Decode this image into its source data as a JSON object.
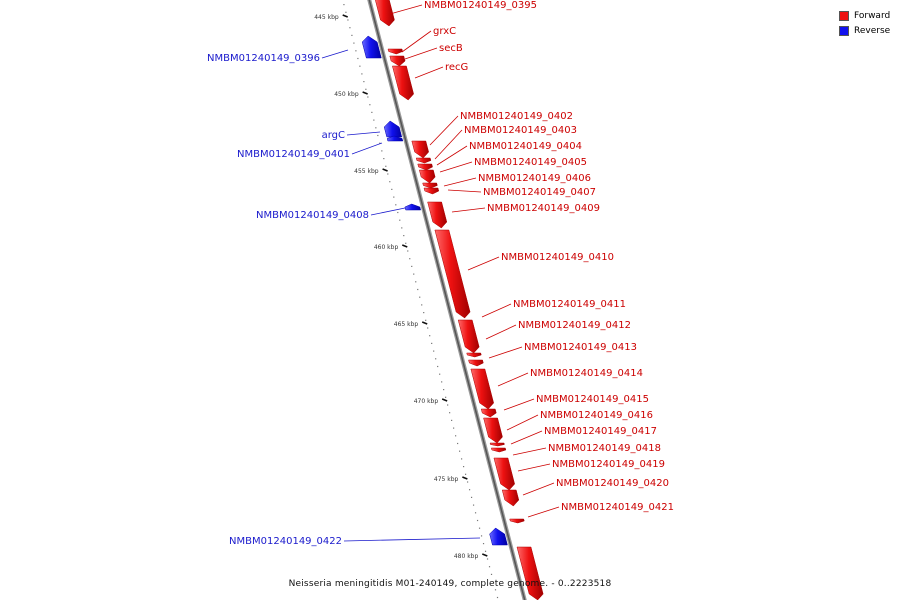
{
  "legend": [
    {
      "label": "Forward",
      "color": "#ee1111"
    },
    {
      "label": "Reverse",
      "color": "#1111ee"
    }
  ],
  "caption": "Neisseria meningitidis M01-240149, complete genome. - 0..2223518",
  "ticks": [
    {
      "label": "445 kbp",
      "kbp": 445
    },
    {
      "label": "450 kbp",
      "kbp": 450
    },
    {
      "label": "455 kbp",
      "kbp": 455
    },
    {
      "label": "460 kbp",
      "kbp": 460
    },
    {
      "label": "465 kbp",
      "kbp": 465
    },
    {
      "label": "470 kbp",
      "kbp": 470
    },
    {
      "label": "475 kbp",
      "kbp": 475
    },
    {
      "label": "480 kbp",
      "kbp": 480
    }
  ],
  "genes": [
    {
      "label": "NMBM01240149_0395",
      "strand": "forward"
    },
    {
      "label": "NMBM01240149_0396",
      "strand": "reverse"
    },
    {
      "label": "grxC",
      "strand": "forward"
    },
    {
      "label": "secB",
      "strand": "forward"
    },
    {
      "label": "recG",
      "strand": "forward"
    },
    {
      "label": "argC",
      "strand": "reverse"
    },
    {
      "label": "NMBM01240149_0401",
      "strand": "reverse"
    },
    {
      "label": "NMBM01240149_0402",
      "strand": "forward"
    },
    {
      "label": "NMBM01240149_0403",
      "strand": "forward"
    },
    {
      "label": "NMBM01240149_0404",
      "strand": "forward"
    },
    {
      "label": "NMBM01240149_0405",
      "strand": "forward"
    },
    {
      "label": "NMBM01240149_0406",
      "strand": "forward"
    },
    {
      "label": "NMBM01240149_0407",
      "strand": "forward"
    },
    {
      "label": "NMBM01240149_0408",
      "strand": "reverse"
    },
    {
      "label": "NMBM01240149_0409",
      "strand": "forward"
    },
    {
      "label": "NMBM01240149_0410",
      "strand": "forward"
    },
    {
      "label": "NMBM01240149_0411",
      "strand": "forward"
    },
    {
      "label": "NMBM01240149_0412",
      "strand": "forward"
    },
    {
      "label": "NMBM01240149_0413",
      "strand": "forward"
    },
    {
      "label": "NMBM01240149_0414",
      "strand": "forward"
    },
    {
      "label": "NMBM01240149_0415",
      "strand": "forward"
    },
    {
      "label": "NMBM01240149_0416",
      "strand": "forward"
    },
    {
      "label": "NMBM01240149_0417",
      "strand": "forward"
    },
    {
      "label": "NMBM01240149_0418",
      "strand": "forward"
    },
    {
      "label": "NMBM01240149_0419",
      "strand": "forward"
    },
    {
      "label": "NMBM01240149_0420",
      "strand": "forward"
    },
    {
      "label": "NMBM01240149_0421",
      "strand": "forward"
    },
    {
      "label": "NMBM01240149_0422",
      "strand": "reverse"
    }
  ]
}
